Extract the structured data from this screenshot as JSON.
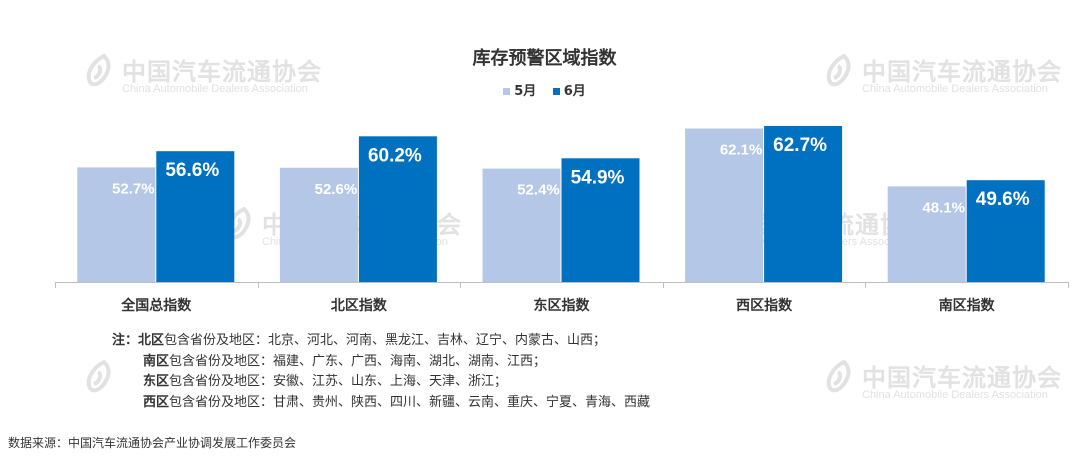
{
  "watermark": {
    "cn": "中国汽车流通协会",
    "en": "China Automobile Dealers Association",
    "logo_text": "CADA"
  },
  "chart_data": {
    "type": "bar",
    "title": "库存预警区域指数",
    "categories": [
      "全国总指数",
      "北区指数",
      "东区指数",
      "西区指数",
      "南区指数"
    ],
    "series": [
      {
        "name": "5月",
        "values": [
          52.7,
          52.6,
          52.4,
          62.1,
          48.1
        ],
        "color": "#b4c7e7"
      },
      {
        "name": "6月",
        "values": [
          56.6,
          60.2,
          54.9,
          62.7,
          49.6
        ],
        "color": "#0070c0"
      }
    ],
    "value_suffix": "%",
    "ylim": [
      25,
      65
    ],
    "grid": false,
    "legend": "top-center"
  },
  "notes": {
    "prefix": "注：",
    "rows": [
      {
        "region": "北区",
        "text": "包含省份及地区：北京、河北、河南、黑龙江、吉林、辽宁、内蒙古、山西；"
      },
      {
        "region": "南区",
        "text": "包含省份及地区：福建、广东、广西、海南、湖北、湖南、江西；"
      },
      {
        "region": "东区",
        "text": "包含省份及地区：安徽、江苏、山东、上海、天津、浙江；"
      },
      {
        "region": "西区",
        "text": "包含省份及地区：甘肃、贵州、陕西、四川、新疆、云南、重庆、宁夏、青海、西藏"
      }
    ]
  },
  "source": "数据来源：中国汽车流通协会产业协调发展工作委员会"
}
